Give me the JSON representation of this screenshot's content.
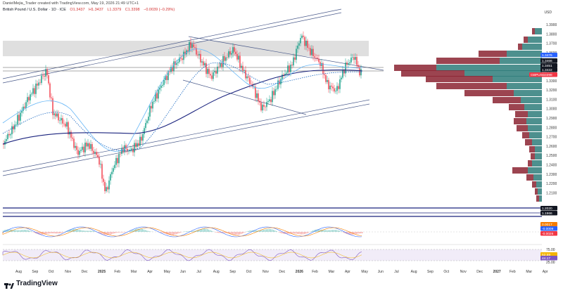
{
  "header": {
    "credit": "DanielMejia_Trader created with TradingView.com, May 19, 2026 21:49 UTC+1",
    "symbol": "British Pound / U.S. Dollar · 1D · ICE",
    "open": "O1.3437",
    "high": "H1.3437",
    "low": "L1.3379",
    "close": "C1.3398",
    "change": "−0.0039 (−0.29%)",
    "currency": "USD"
  },
  "price_axis": {
    "labels": [
      "1.3900",
      "1.3800",
      "1.3700",
      "1.3600",
      "1.3500",
      "1.3400",
      "1.3300",
      "1.3200",
      "1.3100",
      "1.3000",
      "1.2900",
      "1.2800",
      "1.2700",
      "1.2600",
      "1.2500",
      "1.2400",
      "1.2300",
      "1.2200",
      "1.2100"
    ],
    "tags": [
      {
        "text": "1.3476",
        "color": "#2962ff"
      },
      {
        "text": "1.3466",
        "color": "#131722"
      },
      {
        "text": "1.3451",
        "color": "#131722"
      },
      {
        "text": "1.3422",
        "color": "#131722"
      },
      {
        "text": "1.3398",
        "color": "#f23645"
      },
      {
        "text": "GBPUSD",
        "color": "#f23645"
      }
    ]
  },
  "pane2": {
    "tags": [
      {
        "text": "1.2020",
        "color": "#131722"
      },
      {
        "text": "1.1966",
        "color": "#131722"
      }
    ]
  },
  "macd": {
    "tags": [
      {
        "text": "0.0017",
        "color": "#f57c00"
      },
      {
        "text": "-0.0009",
        "color": "#2962ff"
      },
      {
        "text": "-0.0026",
        "color": "#f23645"
      }
    ]
  },
  "rsi": {
    "levels": [
      "75.00",
      "25.00"
    ],
    "tags": [
      {
        "text": "52.59",
        "color": "#f4b400"
      },
      {
        "text": "44.17",
        "color": "#7e57c2"
      }
    ]
  },
  "time_axis": {
    "labels": [
      "Aug",
      "Sep",
      "Oct",
      "Nov",
      "Dec",
      "2025",
      "Feb",
      "Mar",
      "Apr",
      "May",
      "Jun",
      "Jul",
      "Aug",
      "Sep",
      "Oct",
      "Nov",
      "Dec",
      "2026",
      "Feb",
      "Mar",
      "Apr",
      "May",
      "Jun",
      "Jul",
      "Aug",
      "Sep",
      "Oct",
      "Nov",
      "Dec",
      "2027",
      "Feb",
      "Mar",
      "Apr"
    ]
  },
  "colors": {
    "up": "#089981",
    "down": "#f23645",
    "vp_up": "#2e7d7a",
    "vp_down": "#8b2331",
    "sma_dark": "#1a237e",
    "sma_light": "#64b5f6",
    "zone": "#d9d9d9"
  },
  "brand": {
    "name": "TradingView"
  }
}
